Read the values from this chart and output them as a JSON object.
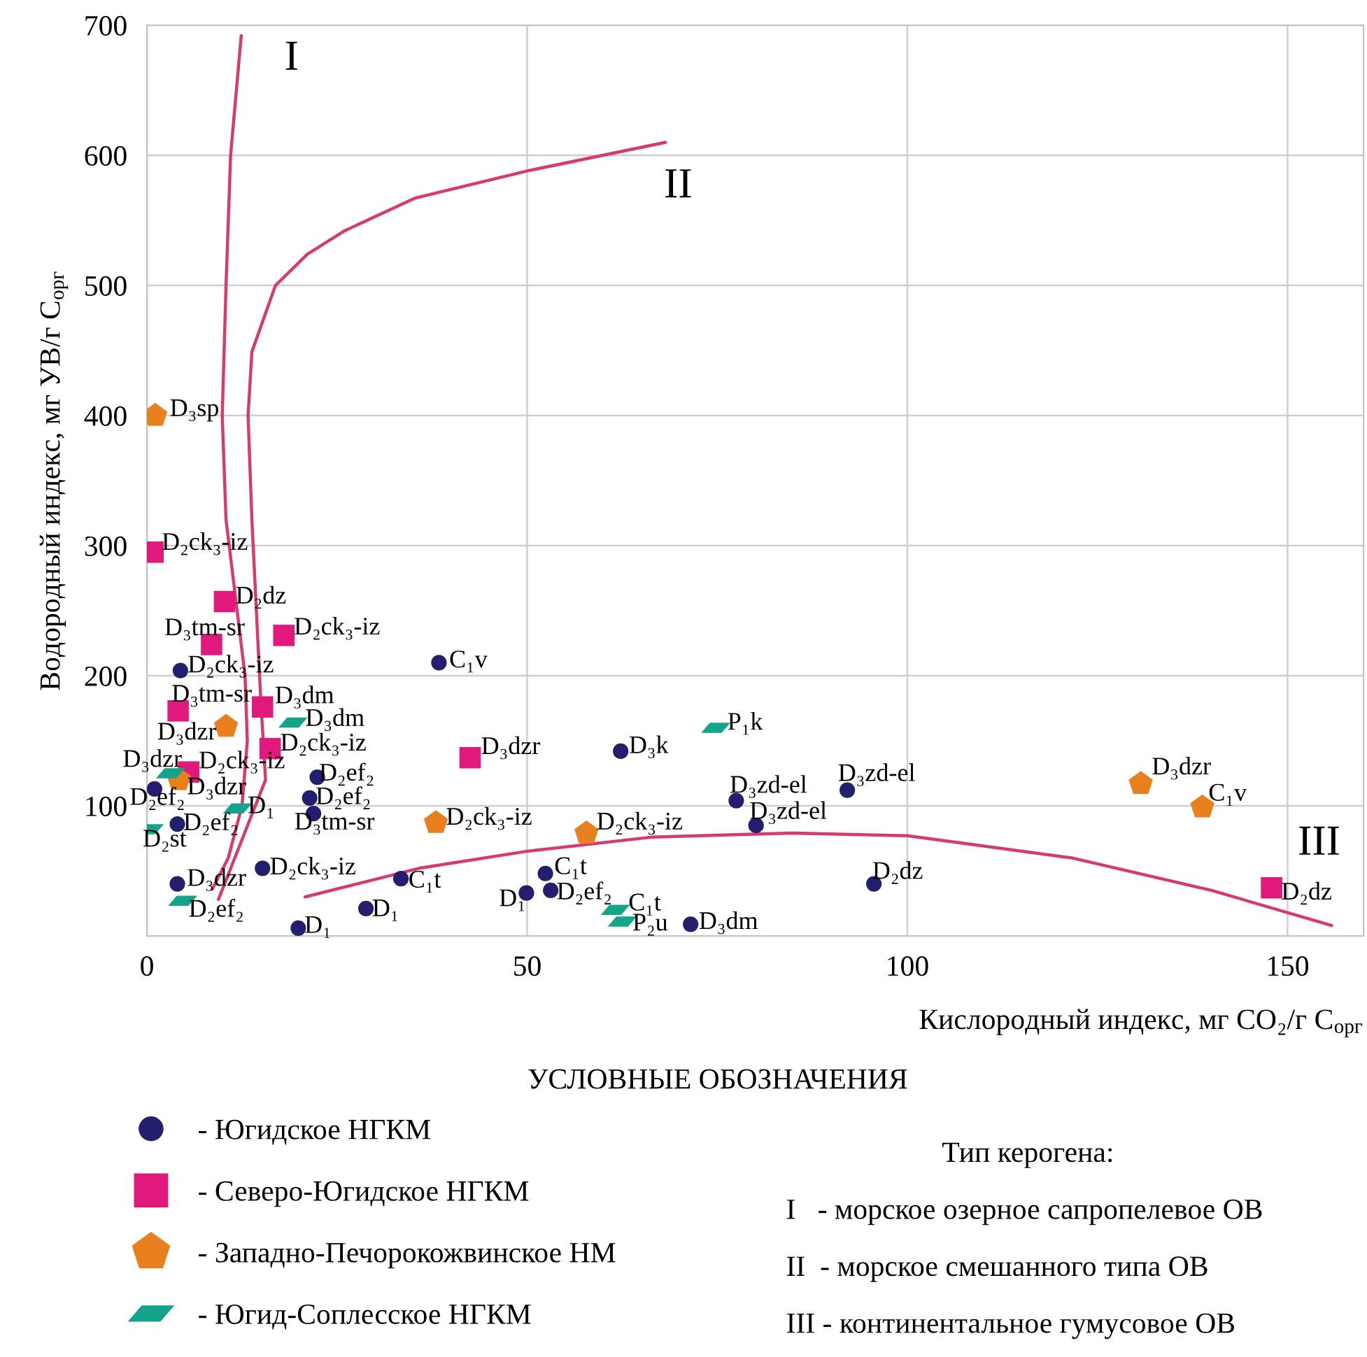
{
  "chart_data": {
    "type": "scatter",
    "xlabel": "Кислородный индекс, мг CO₂/г C$_{орг}$",
    "ylabel": "Водородный индекс, мг УВ/г C$_{орг}$",
    "legend_title": "УСЛОВНЫЕ ОБОЗНАЧЕНИЯ",
    "legend": "bottom",
    "grid": true,
    "xlim": [
      0,
      160
    ],
    "ylim": [
      0,
      700
    ],
    "xticks": [
      0,
      50,
      100,
      150
    ],
    "yticks": [
      100,
      200,
      300,
      400,
      500,
      600,
      700
    ],
    "series": [
      {
        "name": "- Югидское НГКМ",
        "marker": "circle",
        "color": "#231f6e",
        "x": [
          4.4,
          38.4,
          1.0,
          22.4,
          21.4,
          21.9,
          4.0,
          15.2,
          4.0,
          33.4,
          28.8,
          19.9,
          62.3,
          77.5,
          80.1,
          92.1,
          52.4,
          53.1,
          49.9,
          71.5,
          95.6
        ],
        "values": [
          204,
          210,
          113,
          122,
          106,
          94,
          86,
          52,
          40,
          44,
          21,
          6,
          142,
          104,
          85,
          112,
          48,
          35,
          33,
          9,
          40
        ]
      },
      {
        "name": "- Северо-Югидское НГКМ",
        "marker": "square",
        "color": "#e2197c",
        "x": [
          0.8,
          10.2,
          8.5,
          18.0,
          4.1,
          15.2,
          16.2,
          5.5,
          42.5,
          147.9
        ],
        "values": [
          295,
          257,
          224,
          231,
          173,
          176,
          144,
          126,
          137,
          37
        ]
      },
      {
        "name": "- Западно-Печорокожвинское НМ",
        "color": "#e8801e",
        "x": [
          1.1,
          10.4,
          4.2,
          38.0,
          57.8,
          130.7,
          138.8
        ],
        "values": [
          400,
          161,
          120,
          87,
          79,
          117,
          99
        ]
      },
      {
        "name": "- Югид-Соплесское НГКМ",
        "color": "#14a38b",
        "x": [
          19.2,
          3.1,
          11.9,
          0.3,
          4.7,
          74.8,
          61.6,
          62.5
        ],
        "values": [
          164,
          125,
          98,
          82,
          27,
          160,
          20,
          11
        ]
      },
      {
        "type": "line",
        "color": "#d63a6e",
        "x": [
          8.6,
          10.7,
          12.5,
          13.2,
          12.9,
          10.4,
          9.9,
          10.4,
          11.0,
          12.4
        ],
        "values": [
          36,
          60,
          100,
          150,
          200,
          320,
          400,
          500,
          600,
          692
        ]
      },
      {
        "type": "line",
        "color": "#d63a6e",
        "x": [
          9.4,
          15.6,
          15.0,
          13.8,
          13.3,
          13.8,
          16.9,
          21.1,
          26.0,
          35.2,
          50.0,
          68.2
        ],
        "values": [
          28,
          120,
          178,
          320,
          400,
          449,
          500,
          524,
          542,
          567,
          588,
          610
        ]
      },
      {
        "type": "line",
        "color": "#d63a6e",
        "x": [
          20.8,
          35.8,
          49.9,
          66.5,
          84.9,
          100.0,
          121.6,
          140.0,
          155.8
        ],
        "values": [
          30,
          52,
          65,
          76,
          79,
          77,
          60,
          35,
          8
        ]
      }
    ],
    "annotations": [
      {
        "text": "I",
        "x": 12.4,
        "y": 692
      },
      {
        "text": "II",
        "x": 68.2,
        "y": 610
      },
      {
        "text": "III",
        "x": 155.8,
        "y": 8
      },
      {
        "text": "D₃sp",
        "x": 1.1,
        "y": 400
      },
      {
        "text": "D₂ck₃-iz",
        "x": 0.8,
        "y": 295
      },
      {
        "text": "D₂dz",
        "x": 10.2,
        "y": 257
      },
      {
        "text": "D₃tm-sr",
        "x": 8.5,
        "y": 224
      },
      {
        "text": "D₂ck₃-iz",
        "x": 18.0,
        "y": 231
      },
      {
        "text": "D₂ck₃-iz",
        "x": 4.4,
        "y": 204
      },
      {
        "text": "D₃tm-sr",
        "x": 4.1,
        "y": 173
      },
      {
        "text": "D₃dm",
        "x": 15.2,
        "y": 176
      },
      {
        "text": "D₃dzr",
        "x": 10.4,
        "y": 161
      },
      {
        "text": "D₃dm",
        "x": 19.2,
        "y": 164
      },
      {
        "text": "D₂ck₃-iz",
        "x": 16.2,
        "y": 144
      },
      {
        "text": "D₃dzr",
        "x": 3.1,
        "y": 125
      },
      {
        "text": "D₂ck₃-iz",
        "x": 5.5,
        "y": 126
      },
      {
        "text": "D₂ef₂",
        "x": 22.4,
        "y": 122
      },
      {
        "text": "D₂ef₂",
        "x": 21.4,
        "y": 106
      },
      {
        "text": "D₂ef₂",
        "x": 1.0,
        "y": 113
      },
      {
        "text": "D₃dzr",
        "x": 4.2,
        "y": 120
      },
      {
        "text": "D₁",
        "x": 11.9,
        "y": 98
      },
      {
        "text": "D₃tm-sr",
        "x": 21.9,
        "y": 94
      },
      {
        "text": "D₂ef₂",
        "x": 4.0,
        "y": 86
      },
      {
        "text": "D₂st",
        "x": 0.3,
        "y": 82
      },
      {
        "text": "D₂ck₃-iz",
        "x": 15.2,
        "y": 52
      },
      {
        "text": "D₃dzr",
        "x": 4.0,
        "y": 40
      },
      {
        "text": "D₂ef₂",
        "x": 4.7,
        "y": 27
      },
      {
        "text": "C₁t",
        "x": 33.4,
        "y": 44
      },
      {
        "text": "D₁",
        "x": 28.8,
        "y": 21
      },
      {
        "text": "D₁",
        "x": 19.9,
        "y": 6
      },
      {
        "text": "C₁v",
        "x": 38.4,
        "y": 210
      },
      {
        "text": "D₃dzr",
        "x": 42.5,
        "y": 137
      },
      {
        "text": "D₃k",
        "x": 62.3,
        "y": 142
      },
      {
        "text": "P₁k",
        "x": 74.8,
        "y": 160
      },
      {
        "text": "D₃zd-el",
        "x": 77.5,
        "y": 104
      },
      {
        "text": "D₃zd-el",
        "x": 80.1,
        "y": 85
      },
      {
        "text": "D₃zd-el",
        "x": 92.1,
        "y": 112
      },
      {
        "text": "D₂ck₃-iz",
        "x": 38.0,
        "y": 87
      },
      {
        "text": "D₂ck₃-iz",
        "x": 57.8,
        "y": 79
      },
      {
        "text": "C₁t",
        "x": 52.4,
        "y": 48
      },
      {
        "text": "D₁",
        "x": 49.9,
        "y": 33
      },
      {
        "text": "D₂ef₂",
        "x": 53.1,
        "y": 35
      },
      {
        "text": "C₁t",
        "x": 61.6,
        "y": 20
      },
      {
        "text": "P₂u",
        "x": 62.5,
        "y": 11
      },
      {
        "text": "D₃dm",
        "x": 71.5,
        "y": 9
      },
      {
        "text": "D₃dzr",
        "x": 130.7,
        "y": 117
      },
      {
        "text": "C₁v",
        "x": 138.8,
        "y": 99
      },
      {
        "text": "D₂dz",
        "x": 95.6,
        "y": 40
      },
      {
        "text": "D₂dz",
        "x": 147.9,
        "y": 37
      },
      "Тип керогена:",
      "I   - морское озерное сапропелевое ОВ",
      "II  - морское смешанного типа ОВ",
      "III - континентальное гумусовое ОВ"
    ]
  }
}
